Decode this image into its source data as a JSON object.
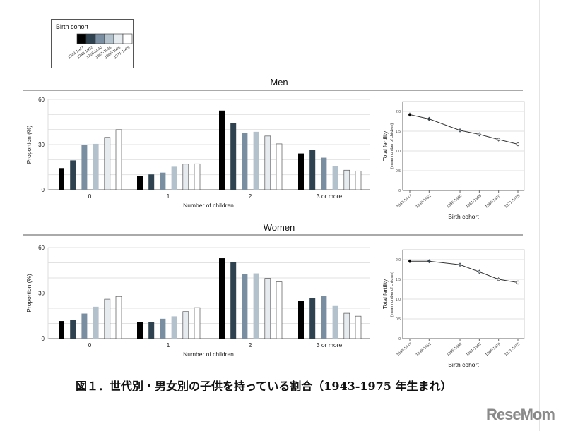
{
  "legend": {
    "title": "Birth cohort",
    "cohorts": [
      "1943-1947",
      "1948-1952",
      "1956-1960",
      "1961-1965",
      "1966-1970",
      "1971-1975"
    ],
    "colors": [
      "#000000",
      "#2e4250",
      "#7a8ea2",
      "#b3c1cd",
      "#e6ebef",
      "#ffffff"
    ]
  },
  "chart_data": [
    {
      "type": "bar",
      "title": "Men",
      "xlabel": "Number of children",
      "ylabel": "Proportion (%)",
      "ylim": [
        0,
        60
      ],
      "yticks": [
        0,
        30,
        60
      ],
      "grid": true,
      "categories": [
        "0",
        "1",
        "2",
        "3 or more"
      ],
      "series": [
        {
          "name": "1943-1947",
          "values": [
            14.4,
            9.1,
            52.6,
            24.1
          ]
        },
        {
          "name": "1948-1952",
          "values": [
            19.5,
            10.2,
            44.2,
            26.4
          ]
        },
        {
          "name": "1956-1960",
          "values": [
            29.8,
            11.4,
            37.6,
            21.3
          ]
        },
        {
          "name": "1961-1965",
          "values": [
            30.5,
            15.3,
            38.5,
            15.8
          ]
        },
        {
          "name": "1966-1970",
          "values": [
            34.8,
            17.0,
            35.7,
            13.0
          ]
        },
        {
          "name": "1971-1975",
          "values": [
            39.9,
            17.2,
            30.5,
            12.5
          ]
        }
      ]
    },
    {
      "type": "line",
      "xlabel": "Birth cohort",
      "ylabel": "Total fertility",
      "ylabel_sub": "(mean number of children)",
      "ylim": [
        0,
        2.25
      ],
      "yticks": [
        "0",
        "0.5",
        "1.0",
        "1.5",
        "2.0"
      ],
      "grid": true,
      "x": [
        "1943-1947",
        "1948-1952",
        "1956-1960",
        "1961-1965",
        "1966-1970",
        "1971-1975"
      ],
      "values": [
        1.92,
        1.81,
        1.52,
        1.42,
        1.29,
        1.17
      ],
      "error": 0.05
    },
    {
      "type": "bar",
      "title": "Women",
      "xlabel": "Number of children",
      "ylabel": "Proportion (%)",
      "ylim": [
        0,
        60
      ],
      "yticks": [
        0,
        30,
        60
      ],
      "grid": true,
      "categories": [
        "0",
        "1",
        "2",
        "3 or more"
      ],
      "series": [
        {
          "name": "1943-1947",
          "values": [
            11.6,
            10.7,
            53.0,
            24.9
          ]
        },
        {
          "name": "1948-1952",
          "values": [
            12.4,
            10.8,
            50.7,
            26.6
          ]
        },
        {
          "name": "1956-1960",
          "values": [
            16.5,
            13.1,
            42.5,
            28.0
          ]
        },
        {
          "name": "1961-1965",
          "values": [
            21.0,
            14.7,
            43.0,
            21.5
          ]
        },
        {
          "name": "1966-1970",
          "values": [
            26.0,
            17.8,
            39.7,
            16.7
          ]
        },
        {
          "name": "1971-1975",
          "values": [
            27.8,
            20.4,
            37.4,
            14.8
          ]
        }
      ]
    },
    {
      "type": "line",
      "xlabel": "Birth cohort",
      "ylabel": "Total fertility",
      "ylabel_sub": "(mean number of children)",
      "ylim": [
        0,
        2.25
      ],
      "yticks": [
        "0",
        "0.5",
        "1.0",
        "1.5",
        "2.0"
      ],
      "grid": true,
      "x": [
        "1943-1947",
        "1948-1952",
        "1956-1960",
        "1961-1965",
        "1966-1970",
        "1971-1975"
      ],
      "values": [
        1.96,
        1.96,
        1.87,
        1.69,
        1.5,
        1.42
      ],
      "error": 0.05
    }
  ],
  "caption": "図１．世代別・男女別の子供を持っている割合（1943-1975 年生まれ）",
  "logo": "ReseMom"
}
